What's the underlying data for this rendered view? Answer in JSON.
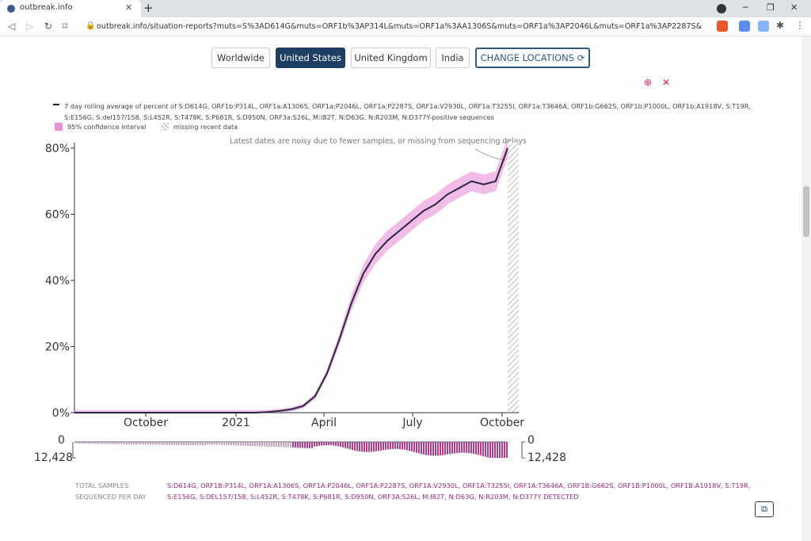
{
  "browser": {
    "tab_title": "outbreak.info",
    "url": "outbreak.info/situation-reports?muts=S%3AD614G&muts=ORF1b%3AP314L&muts=ORF1a%3AA1306S&muts=ORF1a%3AP2046L&muts=ORF1a%3AP2287S&muts=ORF1a..."
  },
  "locations": {
    "worldwide": "Worldwide",
    "us": "United States",
    "uk": "United Kingdom",
    "india": "India",
    "change": "CHANGE LOCATIONS"
  },
  "legend": {
    "line_text": "7 day rolling average of percent of S:D614G, ORF1b:P314L, ORF1a:A1306S, ORF1a:P2046L, ORF1a:P2287S, ORF1a:V2930L, ORF1a:T3255I, ORF1a:T3646A, ORF1b:G662S, ORF1b:P1000L, ORF1b:A1918V, S:T19R, S:E156G, S:del157/158, S:L452R, S:T478K, S:P681R, S:D950N, ORF3a:S26L, M:I82T, N:D63G, N:R203M, N:D377Y-positive sequences",
    "ci": "95% confidence interval",
    "missing": "missing recent data"
  },
  "note": "Latest dates are noisy due to fewer samples, or missing from sequencing delays",
  "chart_data": {
    "type": "line",
    "y_ticks": [
      "80%",
      "60%",
      "40%",
      "20%",
      "0%"
    ],
    "x_ticks": [
      "October",
      "2021",
      "April",
      "July",
      "October"
    ],
    "ylim": [
      0,
      80
    ],
    "series": [
      {
        "values": [
          0,
          0,
          0,
          0,
          0,
          0,
          0,
          0,
          0,
          0,
          0,
          0,
          0,
          0,
          0,
          0,
          0.2,
          0.5,
          1,
          2,
          5,
          12,
          22,
          33,
          42,
          48,
          52,
          55,
          58,
          61,
          63,
          66,
          68,
          70,
          69,
          70,
          80
        ]
      }
    ],
    "samples_ticks": [
      "0",
      "12,428"
    ]
  },
  "bottom": {
    "total": "TOTAL SAMPLES",
    "per_day": "SEQUENCED PER DAY",
    "mutations": "S:D614G, ORF1B:P314L, ORF1A:A1306S, ORF1A:P2046L, ORF1A:P2287S, ORF1A:V2930L, ORF1A:T3255I, ORF1A:T3646A, ORF1B:G662S, ORF1B:P1000L, ORF1B:A1918V, S:T19R, S:E156G, S:DEL157/158, S:L452R, S:T478K, S:P681R, S:D950N, ORF3A:S26L, M:I82T, N:D63G, N:R203M, N:D377Y DETECTED"
  },
  "colors": {
    "accent": "#1e3f63",
    "ci": "#e891d6",
    "samples": "#b23a94"
  }
}
